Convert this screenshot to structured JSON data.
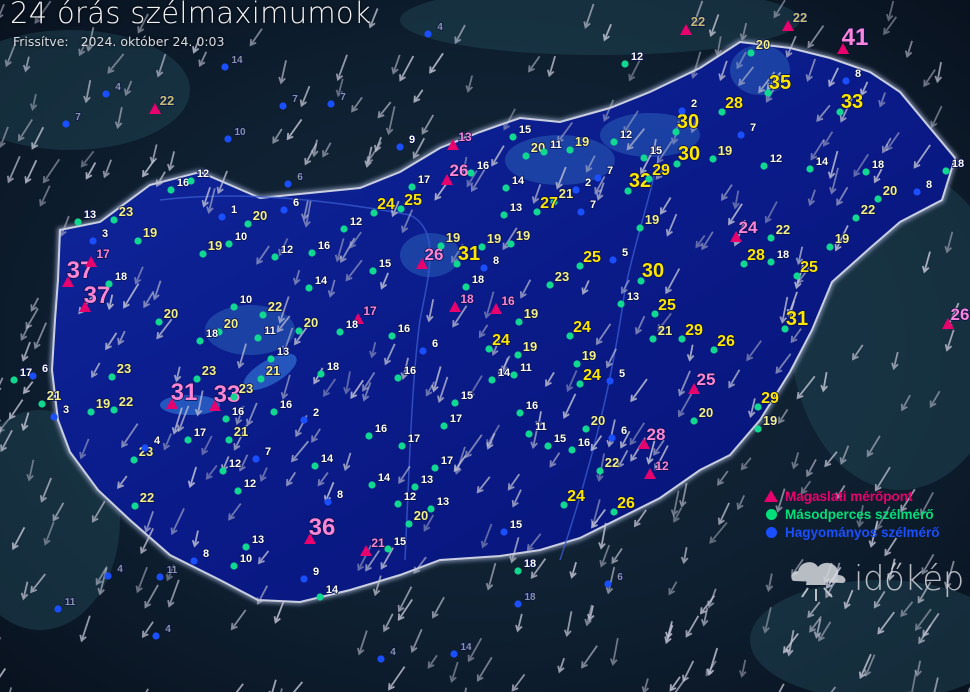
{
  "header": {
    "title": "24 órás szélmaximumok",
    "updated_label": "Frissítve:",
    "updated_value": "2024. október 24. 0:03"
  },
  "legend": [
    {
      "label": "Magaslati mérőpont",
      "color": "#e8006f",
      "symbol": "triangle"
    },
    {
      "label": "Másodperces szélmérő",
      "color": "#00e07a",
      "symbol": "circle"
    },
    {
      "label": "Hagyományos szélmérő",
      "color": "#1a4fff",
      "symbol": "circle"
    }
  ],
  "logo": {
    "brand": "időkép"
  },
  "colors": {
    "country_fill": "#0b1c9c",
    "country_border": "#c9cfe0",
    "label_strong": "#ffe600",
    "label_medium": "#f4f08a",
    "label_weak": "#ffffff",
    "label_mountain": "#ff86d6",
    "wind_arrow": "#c4c6d6"
  },
  "units": "km/h",
  "stations": [
    {
      "v": "41",
      "t": "magaslati"
    },
    {
      "v": "37",
      "t": "magaslati"
    },
    {
      "v": "37",
      "t": "magaslati"
    },
    {
      "v": "31",
      "t": "magaslati"
    },
    {
      "v": "33",
      "t": "magaslati"
    },
    {
      "v": "36",
      "t": "magaslati"
    },
    {
      "v": "26",
      "t": "magaslati"
    },
    {
      "v": "26",
      "t": "magaslati"
    },
    {
      "v": "24",
      "t": "magaslati"
    },
    {
      "v": "25",
      "t": "magaslati"
    },
    {
      "v": "28",
      "t": "magaslati"
    },
    {
      "v": "26",
      "t": "magaslati"
    },
    {
      "v": "21",
      "t": "magaslati"
    },
    {
      "v": "18",
      "t": "magaslati"
    },
    {
      "v": "16",
      "t": "magaslati"
    },
    {
      "v": "17",
      "t": "magaslati"
    },
    {
      "v": "13",
      "t": "magaslati"
    },
    {
      "v": "12",
      "t": "magaslati"
    },
    {
      "v": "22",
      "t": "magaslati"
    },
    {
      "v": "22",
      "t": "magaslati"
    },
    {
      "v": "22",
      "t": "magaslati"
    },
    {
      "v": "17",
      "t": "magaslati"
    },
    {
      "v": "21",
      "t": "masodperces"
    },
    {
      "v": "35",
      "t": "masodperces"
    },
    {
      "v": "33",
      "t": "masodperces"
    },
    {
      "v": "28",
      "t": "masodperces"
    },
    {
      "v": "30",
      "t": "masodperces"
    },
    {
      "v": "30",
      "t": "masodperces"
    },
    {
      "v": "32",
      "t": "masodperces"
    },
    {
      "v": "29",
      "t": "masodperces"
    },
    {
      "v": "27",
      "t": "masodperces"
    },
    {
      "v": "30",
      "t": "masodperces"
    },
    {
      "v": "31",
      "t": "masodperces"
    },
    {
      "v": "28",
      "t": "masodperces"
    },
    {
      "v": "25",
      "t": "masodperces"
    },
    {
      "v": "25",
      "t": "masodperces"
    },
    {
      "v": "31",
      "t": "masodperces"
    },
    {
      "v": "29",
      "t": "masodperces"
    },
    {
      "v": "26",
      "t": "masodperces"
    },
    {
      "v": "29",
      "t": "masodperces"
    },
    {
      "v": "25",
      "t": "masodperces"
    },
    {
      "v": "21",
      "t": "masodperces"
    },
    {
      "v": "24",
      "t": "masodperces"
    },
    {
      "v": "24",
      "t": "masodperces"
    },
    {
      "v": "24",
      "t": "masodperces"
    },
    {
      "v": "23",
      "t": "masodperces"
    },
    {
      "v": "24",
      "t": "masodperces"
    },
    {
      "v": "25",
      "t": "masodperces"
    },
    {
      "v": "23",
      "t": "masodperces"
    },
    {
      "v": "23",
      "t": "masodperces"
    },
    {
      "v": "23",
      "t": "masodperces"
    },
    {
      "v": "21",
      "t": "masodperces"
    },
    {
      "v": "22",
      "t": "masodperces"
    },
    {
      "v": "20",
      "t": "masodperces"
    },
    {
      "v": "20",
      "t": "masodperces"
    },
    {
      "v": "23",
      "t": "masodperces"
    },
    {
      "v": "22",
      "t": "masodperces"
    },
    {
      "v": "21",
      "t": "masodperces"
    },
    {
      "v": "23",
      "t": "masodperces"
    },
    {
      "v": "21",
      "t": "masodperces"
    },
    {
      "v": "22",
      "t": "masodperces"
    },
    {
      "v": "24",
      "t": "masodperces"
    },
    {
      "v": "26",
      "t": "masodperces"
    },
    {
      "v": "22",
      "t": "masodperces"
    },
    {
      "v": "20",
      "t": "masodperces"
    },
    {
      "v": "22",
      "t": "masodperces"
    },
    {
      "v": "22",
      "t": "masodperces"
    },
    {
      "v": "20",
      "t": "masodperces"
    },
    {
      "v": "20",
      "t": "masodperces"
    },
    {
      "v": "20",
      "t": "masodperces"
    },
    {
      "v": "20",
      "t": "masodperces"
    },
    {
      "v": "20",
      "t": "masodperces"
    },
    {
      "v": "19",
      "t": "masodperces"
    },
    {
      "v": "19",
      "t": "masodperces"
    },
    {
      "v": "19",
      "t": "masodperces"
    },
    {
      "v": "19",
      "t": "masodperces"
    },
    {
      "v": "19",
      "t": "masodperces"
    },
    {
      "v": "19",
      "t": "masodperces"
    },
    {
      "v": "19",
      "t": "masodperces"
    },
    {
      "v": "19",
      "t": "masodperces"
    },
    {
      "v": "19",
      "t": "masodperces"
    },
    {
      "v": "19",
      "t": "masodperces"
    },
    {
      "v": "19",
      "t": "masodperces"
    },
    {
      "v": "19",
      "t": "masodperces"
    },
    {
      "v": "19",
      "t": "masodperces"
    },
    {
      "v": "19",
      "t": "masodperces"
    },
    {
      "v": "18",
      "t": "masodperces"
    },
    {
      "v": "18",
      "t": "masodperces"
    },
    {
      "v": "18",
      "t": "masodperces"
    },
    {
      "v": "18",
      "t": "masodperces"
    },
    {
      "v": "18",
      "t": "masodperces"
    },
    {
      "v": "18",
      "t": "masodperces"
    },
    {
      "v": "18",
      "t": "masodperces"
    },
    {
      "v": "18",
      "t": "masodperces"
    },
    {
      "v": "16",
      "t": "masodperces"
    },
    {
      "v": "12",
      "t": "masodperces"
    },
    {
      "v": "13",
      "t": "masodperces"
    },
    {
      "v": "3",
      "t": "hagyomanyos"
    },
    {
      "v": "1",
      "t": "hagyomanyos"
    },
    {
      "v": "10",
      "t": "masodperces"
    },
    {
      "v": "6",
      "t": "hagyomanyos"
    },
    {
      "v": "12",
      "t": "masodperces"
    },
    {
      "v": "16",
      "t": "masodperces"
    },
    {
      "v": "14",
      "t": "masodperces"
    },
    {
      "v": "15",
      "t": "masodperces"
    },
    {
      "v": "12",
      "t": "masodperces"
    },
    {
      "v": "10",
      "t": "masodperces"
    },
    {
      "v": "11",
      "t": "masodperces"
    },
    {
      "v": "20",
      "t": "masodperces"
    },
    {
      "v": "13",
      "t": "masodperces"
    },
    {
      "v": "16",
      "t": "masodperces"
    },
    {
      "v": "6",
      "t": "hagyomanyos"
    },
    {
      "v": "16",
      "t": "masodperces"
    },
    {
      "v": "14",
      "t": "masodperces"
    },
    {
      "v": "11",
      "t": "masodperces"
    },
    {
      "v": "15",
      "t": "masodperces"
    },
    {
      "v": "16",
      "t": "masodperces"
    },
    {
      "v": "17",
      "t": "masodperces"
    },
    {
      "v": "11",
      "t": "masodperces"
    },
    {
      "v": "15",
      "t": "masodperces"
    },
    {
      "v": "16",
      "t": "masodperces"
    },
    {
      "v": "6",
      "t": "hagyomanyos"
    },
    {
      "v": "5",
      "t": "hagyomanyos"
    },
    {
      "v": "5",
      "t": "hagyomanyos"
    },
    {
      "v": "13",
      "t": "masodperces"
    },
    {
      "v": "8",
      "t": "hagyomanyos"
    },
    {
      "v": "13",
      "t": "masodperces"
    },
    {
      "v": "14",
      "t": "masodperces"
    },
    {
      "v": "15",
      "t": "masodperces"
    },
    {
      "v": "11",
      "t": "masodperces"
    },
    {
      "v": "2",
      "t": "hagyomanyos"
    },
    {
      "v": "7",
      "t": "hagyomanyos"
    },
    {
      "v": "7",
      "t": "hagyomanyos"
    },
    {
      "v": "12",
      "t": "masodperces"
    },
    {
      "v": "15",
      "t": "masodperces"
    },
    {
      "v": "12",
      "t": "masodperces"
    },
    {
      "v": "2",
      "t": "hagyomanyos"
    },
    {
      "v": "7",
      "t": "hagyomanyos"
    },
    {
      "v": "12",
      "t": "masodperces"
    },
    {
      "v": "14",
      "t": "masodperces"
    },
    {
      "v": "8",
      "t": "hagyomanyos"
    },
    {
      "v": "8",
      "t": "hagyomanyos"
    },
    {
      "v": "20",
      "t": "masodperces"
    },
    {
      "v": "12",
      "t": "masodperces"
    },
    {
      "v": "7",
      "t": "hagyomanyos"
    },
    {
      "v": "16",
      "t": "masodperces"
    },
    {
      "v": "2",
      "t": "hagyomanyos"
    },
    {
      "v": "17",
      "t": "masodperces"
    },
    {
      "v": "16",
      "t": "masodperces"
    },
    {
      "v": "16",
      "t": "masodperces"
    },
    {
      "v": "17",
      "t": "masodperces"
    },
    {
      "v": "17",
      "t": "masodperces"
    },
    {
      "v": "14",
      "t": "masodperces"
    },
    {
      "v": "14",
      "t": "masodperces"
    },
    {
      "v": "13",
      "t": "masodperces"
    },
    {
      "v": "12",
      "t": "masodperces"
    },
    {
      "v": "13",
      "t": "masodperces"
    },
    {
      "v": "8",
      "t": "hagyomanyos"
    },
    {
      "v": "12",
      "t": "masodperces"
    },
    {
      "v": "4",
      "t": "hagyomanyos"
    },
    {
      "v": "13",
      "t": "masodperces"
    },
    {
      "v": "10",
      "t": "masodperces"
    },
    {
      "v": "8",
      "t": "hagyomanyos"
    },
    {
      "v": "9",
      "t": "hagyomanyos"
    },
    {
      "v": "14",
      "t": "masodperces"
    },
    {
      "v": "15",
      "t": "masodperces"
    },
    {
      "v": "15",
      "t": "hagyomanyos"
    },
    {
      "v": "18",
      "t": "masodperces"
    },
    {
      "v": "17",
      "t": "masodperces"
    },
    {
      "v": "6",
      "t": "hagyomanyos"
    },
    {
      "v": "3",
      "t": "hagyomanyos"
    },
    {
      "v": "9",
      "t": "hagyomanyos"
    },
    {
      "v": "17",
      "t": "masodperces"
    },
    {
      "v": "16",
      "t": "masodperces"
    },
    {
      "v": "14",
      "t": "hagyomanyos"
    },
    {
      "v": "4",
      "t": "hagyomanyos"
    },
    {
      "v": "7",
      "t": "hagyomanyos"
    },
    {
      "v": "7",
      "t": "hagyomanyos"
    },
    {
      "v": "10",
      "t": "hagyomanyos"
    },
    {
      "v": "7",
      "t": "hagyomanyos"
    },
    {
      "v": "6",
      "t": "hagyomanyos"
    },
    {
      "v": "4",
      "t": "hagyomanyos"
    },
    {
      "v": "11",
      "t": "hagyomanyos"
    },
    {
      "v": "18",
      "t": "hagyomanyos"
    },
    {
      "v": "4",
      "t": "hagyomanyos"
    },
    {
      "v": "14",
      "t": "hagyomanyos"
    },
    {
      "v": "11",
      "t": "hagyomanyos"
    },
    {
      "v": "4",
      "t": "hagyomanyos"
    },
    {
      "v": "4",
      "t": "hagyomanyos"
    },
    {
      "v": "6",
      "t": "hagyomanyos"
    }
  ]
}
